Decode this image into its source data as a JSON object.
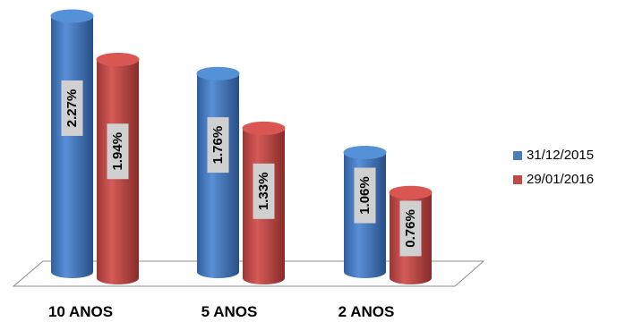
{
  "chart_data": {
    "type": "bar",
    "categories": [
      "10 ANOS",
      "5 ANOS",
      "2 ANOS"
    ],
    "series": [
      {
        "name": "31/12/2015",
        "values": [
          2.27,
          1.76,
          1.06
        ],
        "labels": [
          "2.27%",
          "1.76%",
          "1.06%"
        ],
        "color": "#4a7ebb"
      },
      {
        "name": "29/01/2016",
        "values": [
          1.94,
          1.33,
          0.76
        ],
        "labels": [
          "1.94%",
          "1.33%",
          "0.76%"
        ],
        "color": "#be4b48"
      }
    ],
    "title": "",
    "xlabel": "",
    "ylabel": "",
    "ylim": [
      0,
      2.4
    ],
    "grid": false,
    "legend_position": "right"
  }
}
